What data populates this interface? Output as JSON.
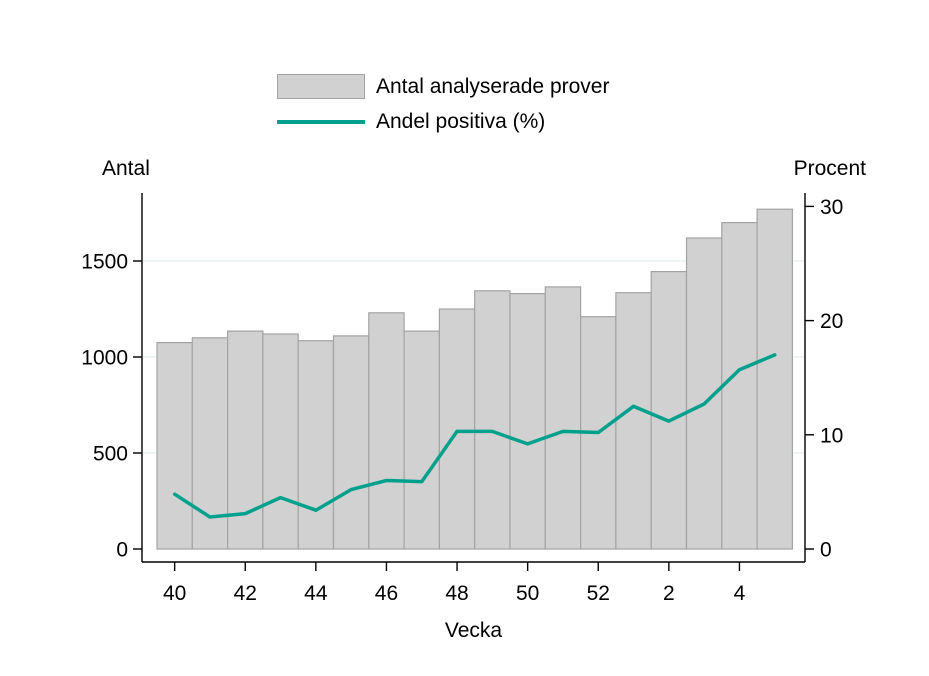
{
  "chart_data": {
    "type": "bar",
    "subtype": "bar-with-line-overlay",
    "categories": [
      "40",
      "41",
      "42",
      "43",
      "44",
      "45",
      "46",
      "47",
      "48",
      "49",
      "50",
      "51",
      "52",
      "1",
      "2",
      "3",
      "4",
      "5"
    ],
    "x_tick_labels": [
      "40",
      "42",
      "44",
      "46",
      "48",
      "50",
      "52",
      "2",
      "4"
    ],
    "x_tick_indices": [
      0,
      2,
      4,
      6,
      8,
      10,
      12,
      14,
      16
    ],
    "xlabel": "Vecka",
    "left_axis": {
      "title": "Antal",
      "ticks": [
        0,
        500,
        1000,
        1500
      ],
      "range": [
        0,
        1855
      ]
    },
    "right_axis": {
      "title": "Procent",
      "ticks": [
        0,
        10,
        20,
        30
      ],
      "range": [
        0,
        31.2
      ]
    },
    "grid": {
      "on": true,
      "gridline_left_values": [
        500,
        1000,
        1500
      ],
      "color": "#e8f1f4"
    },
    "legend_position": "top-center",
    "series": [
      {
        "name": "Antal analyserade prover",
        "type": "bar",
        "axis": "left",
        "fill_color": "#d1d1d1",
        "border_color": "#a3a3a3",
        "values": [
          1075,
          1100,
          1135,
          1120,
          1085,
          1110,
          1230,
          1135,
          1250,
          1345,
          1330,
          1365,
          1210,
          1335,
          1445,
          1620,
          1700,
          1770
        ]
      },
      {
        "name": "Andel positiva (%)",
        "type": "line",
        "axis": "right",
        "color": "#00a18c",
        "values": [
          4.8,
          2.8,
          3.1,
          4.5,
          3.4,
          5.2,
          6.0,
          5.9,
          10.3,
          10.3,
          9.2,
          10.3,
          10.2,
          12.5,
          11.2,
          12.7,
          15.7,
          17.0
        ]
      }
    ],
    "colors": {
      "bar_fill": "#d1d1d1",
      "bar_border": "#a3a3a3",
      "line": "#00a18c",
      "gridline": "#e8f1f4",
      "axis": "#000000",
      "background": "#ffffff"
    }
  }
}
